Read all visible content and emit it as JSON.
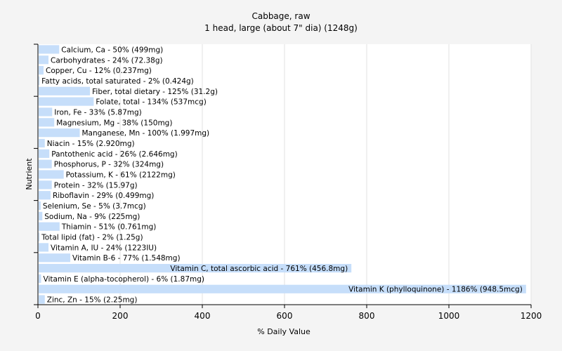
{
  "chart_data": {
    "type": "bar",
    "orientation": "horizontal",
    "title": "Cabbage, raw",
    "subtitle": "1 head, large (about 7\" dia) (1248g)",
    "xlabel": "% Daily Value",
    "ylabel": "Nutrient",
    "xlim": [
      0,
      1200
    ],
    "xticks": [
      0,
      200,
      400,
      600,
      800,
      1000,
      1200
    ],
    "grid": "vertical",
    "legend": "none",
    "bar_color": "#c6defa",
    "categories": [
      "Calcium, Ca - 50% (499mg)",
      "Carbohydrates - 24% (72.38g)",
      "Copper, Cu - 12% (0.237mg)",
      "Fatty acids, total saturated - 2% (0.424g)",
      "Fiber, total dietary - 125% (31.2g)",
      "Folate, total - 134% (537mcg)",
      "Iron, Fe - 33% (5.87mg)",
      "Magnesium, Mg - 38% (150mg)",
      "Manganese, Mn - 100% (1.997mg)",
      "Niacin - 15% (2.920mg)",
      "Pantothenic acid - 26% (2.646mg)",
      "Phosphorus, P - 32% (324mg)",
      "Potassium, K - 61% (2122mg)",
      "Protein - 32% (15.97g)",
      "Riboflavin - 29% (0.499mg)",
      "Selenium, Se - 5% (3.7mcg)",
      "Sodium, Na - 9% (225mg)",
      "Thiamin - 51% (0.761mg)",
      "Total lipid (fat) - 2% (1.25g)",
      "Vitamin A, IU - 24% (1223IU)",
      "Vitamin B-6 - 77% (1.548mg)",
      "Vitamin C, total ascorbic acid - 761% (456.8mg)",
      "Vitamin E (alpha-tocopherol) - 6% (1.87mg)",
      "Vitamin K (phylloquinone) - 1186% (948.5mcg)",
      "Zinc, Zn - 15% (2.25mg)"
    ],
    "values": [
      50,
      24,
      12,
      2,
      125,
      134,
      33,
      38,
      100,
      15,
      26,
      32,
      61,
      32,
      29,
      5,
      9,
      51,
      2,
      24,
      77,
      761,
      6,
      1186,
      15
    ]
  }
}
